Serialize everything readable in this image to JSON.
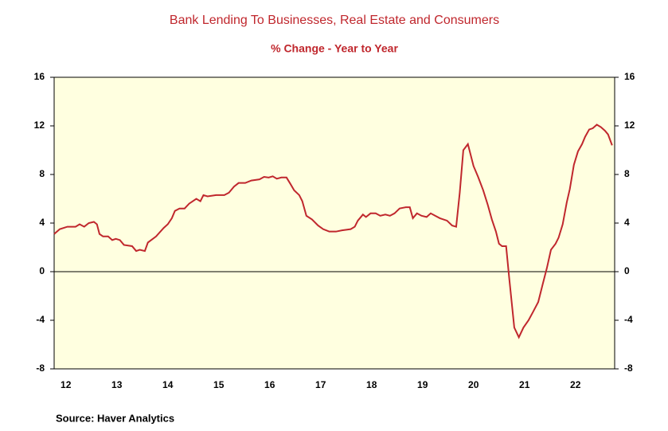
{
  "chart_data": {
    "type": "line",
    "title": "Bank Lending To Businesses, Real Estate and Consumers",
    "subtitle": "% Change - Year to Year",
    "source": "Source:  Haver Analytics",
    "x": [
      12.27,
      12.38,
      12.53,
      12.69,
      12.77,
      12.86,
      12.95,
      13.05,
      13.11,
      13.16,
      13.23,
      13.33,
      13.41,
      13.48,
      13.56,
      13.64,
      13.8,
      13.88,
      13.95,
      14.05,
      14.11,
      14.27,
      14.42,
      14.5,
      14.58,
      14.64,
      14.73,
      14.83,
      14.92,
      15.06,
      15.14,
      15.2,
      15.28,
      15.45,
      15.61,
      15.7,
      15.8,
      15.89,
      16.02,
      16.14,
      16.3,
      16.39,
      16.48,
      16.56,
      16.64,
      16.73,
      16.83,
      16.91,
      16.98,
      17.08,
      17.14,
      17.22,
      17.33,
      17.45,
      17.55,
      17.67,
      17.8,
      17.92,
      18.09,
      18.17,
      18.23,
      18.33,
      18.39,
      18.48,
      18.58,
      18.67,
      18.77,
      18.86,
      18.95,
      19.05,
      19.17,
      19.25,
      19.31,
      19.39,
      19.48,
      19.58,
      19.66,
      19.75,
      19.84,
      19.98,
      20.08,
      20.16,
      20.23,
      20.3,
      20.39,
      20.5,
      20.59,
      20.69,
      20.78,
      20.86,
      20.94,
      21.0,
      21.06,
      21.14,
      21.2,
      21.3,
      21.39,
      21.48,
      21.58,
      21.67,
      21.77,
      21.86,
      21.94,
      22.02,
      22.11,
      22.17,
      22.25,
      22.33,
      22.39,
      22.47,
      22.55,
      22.63,
      22.69,
      22.77,
      22.84,
      22.92,
      23.0,
      23.08,
      23.14,
      23.22
    ],
    "series": [
      {
        "name": "Bank Lending",
        "color": "#c0272d",
        "values": [
          3.1,
          3.5,
          3.7,
          3.7,
          3.9,
          3.7,
          4.0,
          4.1,
          3.9,
          3.1,
          2.9,
          2.9,
          2.6,
          2.7,
          2.6,
          2.2,
          2.1,
          1.7,
          1.8,
          1.7,
          2.4,
          2.9,
          3.6,
          3.9,
          4.4,
          5.0,
          5.2,
          5.2,
          5.6,
          6.0,
          5.8,
          6.3,
          6.2,
          6.3,
          6.3,
          6.5,
          7.0,
          7.3,
          7.3,
          7.5,
          7.6,
          7.8,
          7.75,
          7.85,
          7.65,
          7.75,
          7.75,
          7.2,
          6.7,
          6.3,
          5.8,
          4.6,
          4.3,
          3.8,
          3.5,
          3.3,
          3.3,
          3.4,
          3.5,
          3.7,
          4.2,
          4.7,
          4.5,
          4.8,
          4.8,
          4.6,
          4.7,
          4.6,
          4.8,
          5.2,
          5.3,
          5.3,
          4.4,
          4.8,
          4.6,
          4.5,
          4.8,
          4.6,
          4.4,
          4.2,
          3.8,
          3.7,
          6.5,
          10.0,
          10.5,
          8.7,
          7.8,
          6.7,
          5.5,
          4.3,
          3.3,
          2.3,
          2.1,
          2.1,
          -0.5,
          -4.6,
          -5.4,
          -4.6,
          -4.0,
          -3.3,
          -2.5,
          -1.0,
          0.3,
          1.8,
          2.3,
          2.8,
          3.9,
          5.7,
          6.8,
          8.8,
          9.9,
          10.5,
          11.1,
          11.7,
          11.8,
          12.1,
          11.9,
          11.6,
          11.3,
          10.4
        ]
      }
    ],
    "xlim": [
      12.27,
      23.27
    ],
    "xticks": [
      {
        "value": 12.5,
        "label": "12"
      },
      {
        "value": 13.5,
        "label": "13"
      },
      {
        "value": 14.5,
        "label": "14"
      },
      {
        "value": 15.5,
        "label": "15"
      },
      {
        "value": 16.5,
        "label": "16"
      },
      {
        "value": 17.5,
        "label": "17"
      },
      {
        "value": 18.5,
        "label": "18"
      },
      {
        "value": 19.5,
        "label": "19"
      },
      {
        "value": 20.5,
        "label": "20"
      },
      {
        "value": 21.5,
        "label": "21"
      },
      {
        "value": 22.5,
        "label": "22"
      }
    ],
    "ylim": [
      -8,
      16
    ],
    "yticks": [
      -8,
      -4,
      0,
      4,
      8,
      12,
      16
    ],
    "y2lim": [
      -8,
      16
    ],
    "y2ticks": [
      -8,
      -4,
      0,
      4,
      8,
      12,
      16
    ],
    "reference_line": 0,
    "background": "#ffffe0"
  }
}
